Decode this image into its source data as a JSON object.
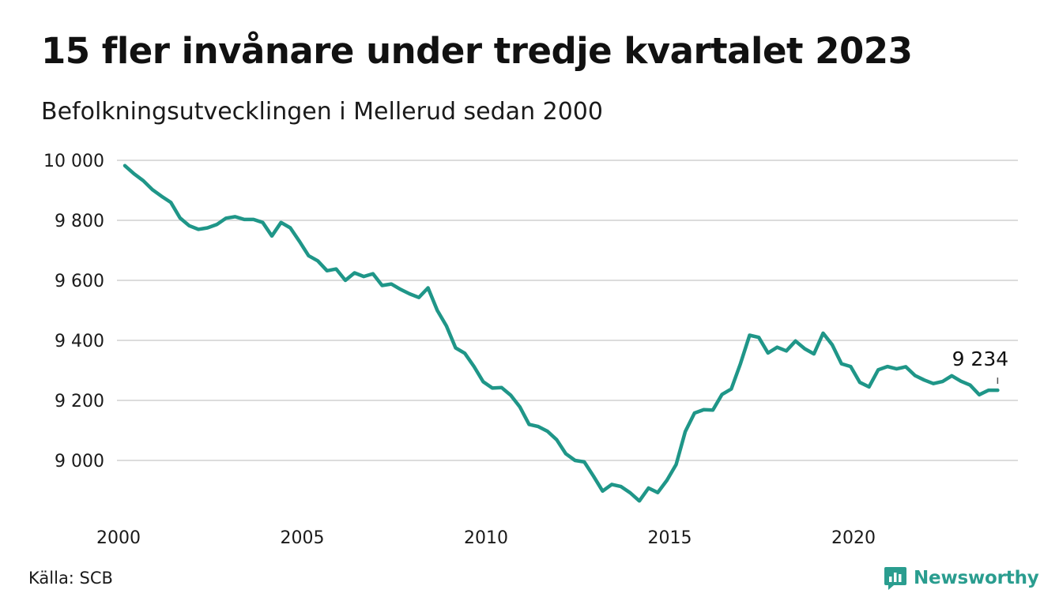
{
  "title": "15 fler invånare under tredje kvartalet 2023",
  "subtitle": "Befolkningsutvecklingen i Mellerud sedan 2000",
  "source": "Källa: SCB",
  "brand": {
    "name": "Newsworthy",
    "icon": "newsworthy-logo-icon",
    "color": "#2a9d8f"
  },
  "chart_data": {
    "type": "line",
    "title": "15 fler invånare under tredje kvartalet 2023",
    "subtitle": "Befolkningsutvecklingen i Mellerud sedan 2000",
    "xlabel": "",
    "ylabel": "",
    "xlim": [
      2000,
      2024
    ],
    "ylim": [
      8850,
      10000
    ],
    "x_ticks": [
      2000,
      2005,
      2010,
      2015,
      2020
    ],
    "x_tick_labels": [
      "2000",
      "2005",
      "2010",
      "2015",
      "2020"
    ],
    "y_ticks": [
      9000,
      9200,
      9400,
      9600,
      9800,
      10000
    ],
    "y_tick_labels": [
      "9 000",
      "9 200",
      "9 400",
      "9 600",
      "9 800",
      "10 000"
    ],
    "grid": true,
    "line_color": "#1f9688",
    "annotation": {
      "x": 2023.75,
      "y": 9234,
      "text": "9 234"
    },
    "series": [
      {
        "x": [
          2000.0,
          2000.25,
          2000.5,
          2000.75,
          2001.0,
          2001.25,
          2001.5,
          2001.75,
          2002.0,
          2002.25,
          2002.5,
          2002.75,
          2003.0,
          2003.25,
          2003.5,
          2003.75,
          2004.0,
          2004.25,
          2004.5,
          2004.75,
          2005.0,
          2005.25,
          2005.5,
          2005.75,
          2006.0,
          2006.25,
          2006.5,
          2006.75,
          2007.0,
          2007.25,
          2007.5,
          2007.75,
          2008.0,
          2008.25,
          2008.5,
          2008.75,
          2009.0,
          2009.25,
          2009.5,
          2009.75,
          2010.0,
          2010.25,
          2010.5,
          2010.75,
          2011.0,
          2011.25,
          2011.5,
          2011.75,
          2012.0,
          2012.25,
          2012.5,
          2012.75,
          2013.0,
          2013.25,
          2013.5,
          2013.75,
          2014.0,
          2014.25,
          2014.5,
          2014.75,
          2015.0,
          2015.25,
          2015.5,
          2015.75,
          2016.0,
          2016.25,
          2016.5,
          2016.75,
          2017.0,
          2017.25,
          2017.5,
          2017.75,
          2018.0,
          2018.25,
          2018.5,
          2018.75,
          2019.0,
          2019.25,
          2019.5,
          2019.75,
          2020.0,
          2020.25,
          2020.5,
          2020.75,
          2021.0,
          2021.25,
          2021.5,
          2021.75,
          2022.0,
          2022.25,
          2022.5,
          2022.75,
          2023.0,
          2023.25,
          2023.5,
          2023.75
        ],
        "y": [
          9982,
          9955,
          9932,
          9902,
          9880,
          9860,
          9808,
          9782,
          9770,
          9775,
          9786,
          9807,
          9812,
          9803,
          9803,
          9793,
          9748,
          9793,
          9775,
          9730,
          9682,
          9665,
          9632,
          9638,
          9600,
          9625,
          9613,
          9622,
          9583,
          9588,
          9570,
          9555,
          9543,
          9575,
          9500,
          9448,
          9375,
          9357,
          9313,
          9262,
          9241,
          9243,
          9217,
          9178,
          9120,
          9113,
          9097,
          9069,
          9022,
          9000,
          8995,
          8948,
          8898,
          8920,
          8913,
          8892,
          8865,
          8908,
          8893,
          8934,
          8986,
          9096,
          9158,
          9169,
          9168,
          9220,
          9238,
          9322,
          9417,
          9410,
          9358,
          9377,
          9365,
          9398,
          9372,
          9355,
          9424,
          9385,
          9322,
          9313,
          9260,
          9245,
          9302,
          9313,
          9305,
          9312,
          9283,
          9268,
          9256,
          9263,
          9282,
          9264,
          9251,
          9219,
          9234,
          9234
        ]
      }
    ]
  }
}
